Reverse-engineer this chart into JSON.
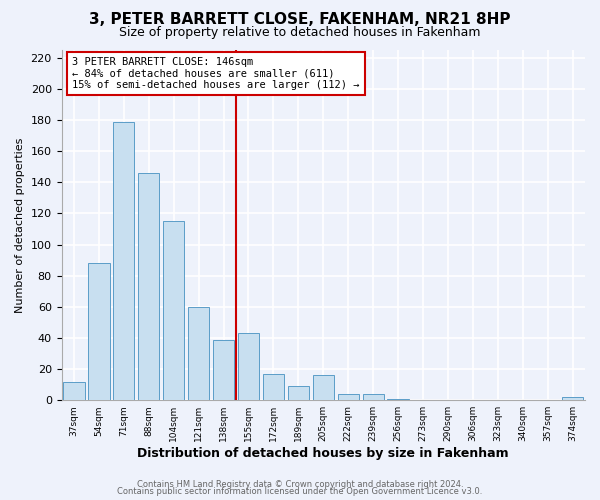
{
  "title": "3, PETER BARRETT CLOSE, FAKENHAM, NR21 8HP",
  "subtitle": "Size of property relative to detached houses in Fakenham",
  "xlabel": "Distribution of detached houses by size in Fakenham",
  "ylabel": "Number of detached properties",
  "bar_labels": [
    "37sqm",
    "54sqm",
    "71sqm",
    "88sqm",
    "104sqm",
    "121sqm",
    "138sqm",
    "155sqm",
    "172sqm",
    "189sqm",
    "205sqm",
    "222sqm",
    "239sqm",
    "256sqm",
    "273sqm",
    "290sqm",
    "306sqm",
    "323sqm",
    "340sqm",
    "357sqm",
    "374sqm"
  ],
  "bar_values": [
    12,
    88,
    179,
    146,
    115,
    60,
    39,
    43,
    17,
    9,
    16,
    4,
    4,
    1,
    0,
    0,
    0,
    0,
    0,
    0,
    2
  ],
  "bar_color": "#c8dff0",
  "bar_edge_color": "#5b9dc8",
  "annotation_line_color": "#cc0000",
  "annotation_box_text_line1": "3 PETER BARRETT CLOSE: 146sqm",
  "annotation_box_text_line2": "← 84% of detached houses are smaller (611)",
  "annotation_box_text_line3": "15% of semi-detached houses are larger (112) →",
  "ylim": [
    0,
    225
  ],
  "yticks": [
    0,
    20,
    40,
    60,
    80,
    100,
    120,
    140,
    160,
    180,
    200,
    220
  ],
  "red_line_x": 6.5,
  "footer_line1": "Contains HM Land Registry data © Crown copyright and database right 2024.",
  "footer_line2": "Contains public sector information licensed under the Open Government Licence v3.0.",
  "bg_color": "#eef2fb",
  "plot_bg_color": "#eef2fb",
  "title_fontsize": 11,
  "subtitle_fontsize": 9
}
